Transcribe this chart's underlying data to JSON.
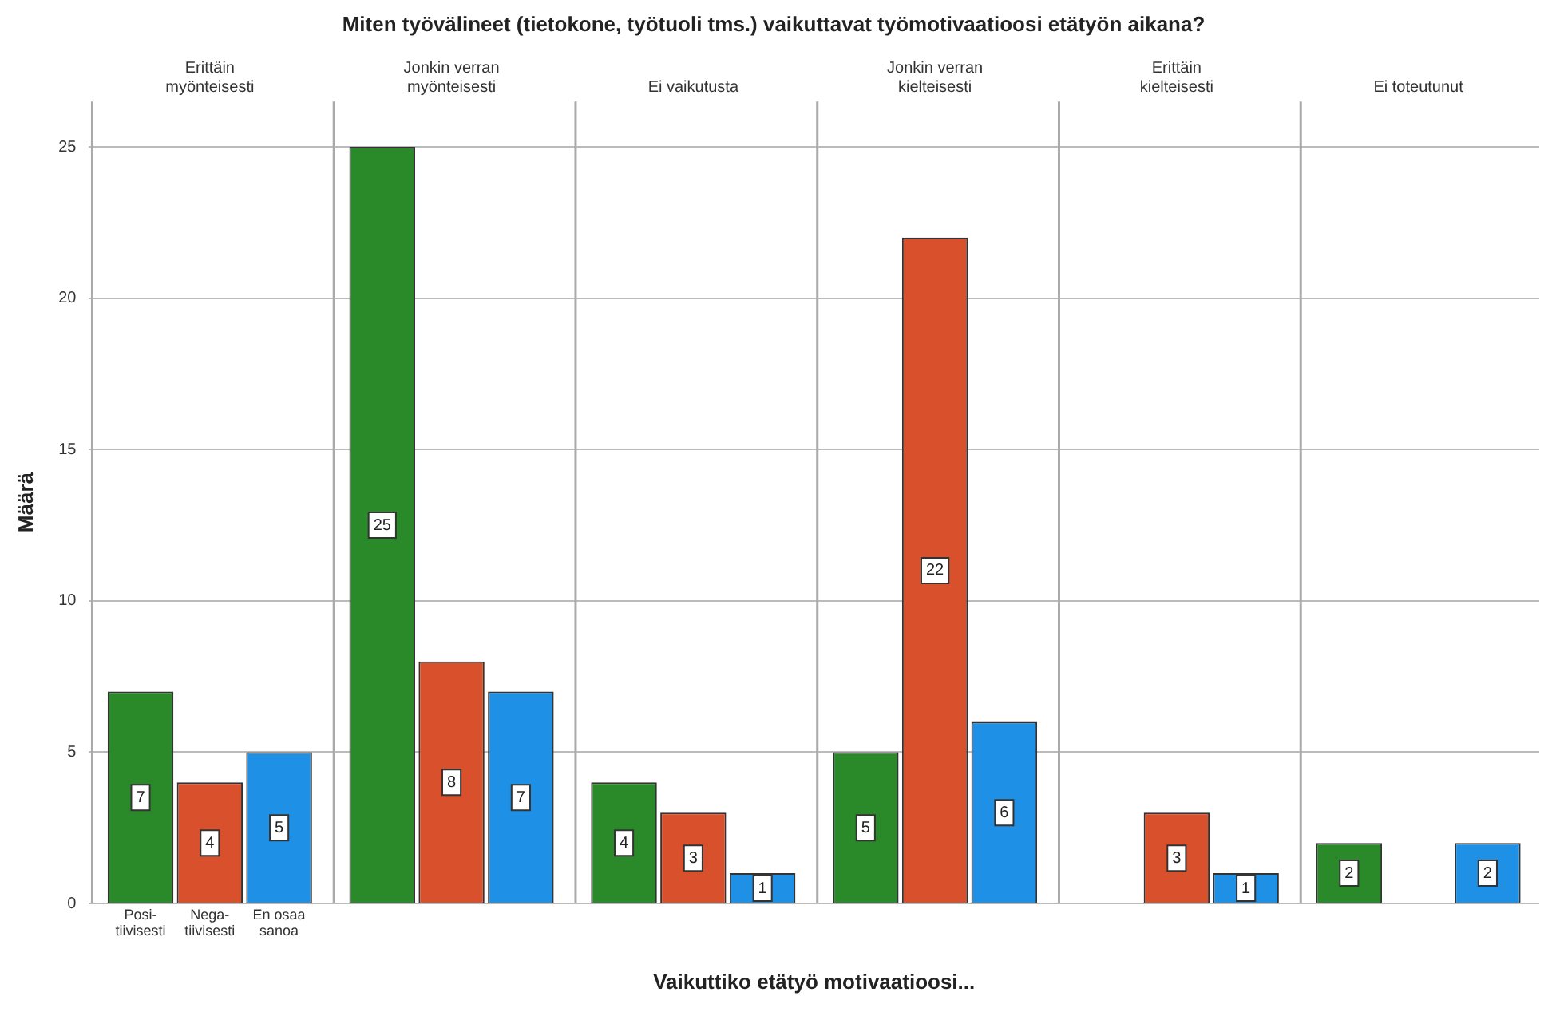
{
  "chart_data": {
    "type": "bar",
    "title": "Miten työvälineet (tietokone, työtuoli tms.) vaikuttavat työmotivaatioosi etätyön aikana?",
    "xlabel": "Vaikuttiko etätyö motivaatioosi...",
    "ylabel": "Määrä",
    "categories": [
      "Erittäin myönteisesti",
      "Jonkin verran myönteisesti",
      "Ei vaikutusta",
      "Jonkin verran kielteisesti",
      "Erittäin kielteisesti",
      "Ei toteutunut"
    ],
    "series": [
      {
        "name": "Posi-tiivisesti",
        "color": "#2a8a2a",
        "values": [
          7,
          25,
          4,
          5,
          null,
          2
        ]
      },
      {
        "name": "Nega-tiivisesti",
        "color": "#d9502c",
        "values": [
          4,
          8,
          3,
          22,
          3,
          null
        ]
      },
      {
        "name": "En osaa sanoa",
        "color": "#1e90e6",
        "values": [
          5,
          7,
          1,
          6,
          1,
          2
        ]
      }
    ],
    "ylim": [
      0,
      26.5
    ],
    "yticks": [
      0,
      5,
      10,
      15,
      20,
      25
    ],
    "grid": "y",
    "data_labels": true,
    "legend": false
  }
}
